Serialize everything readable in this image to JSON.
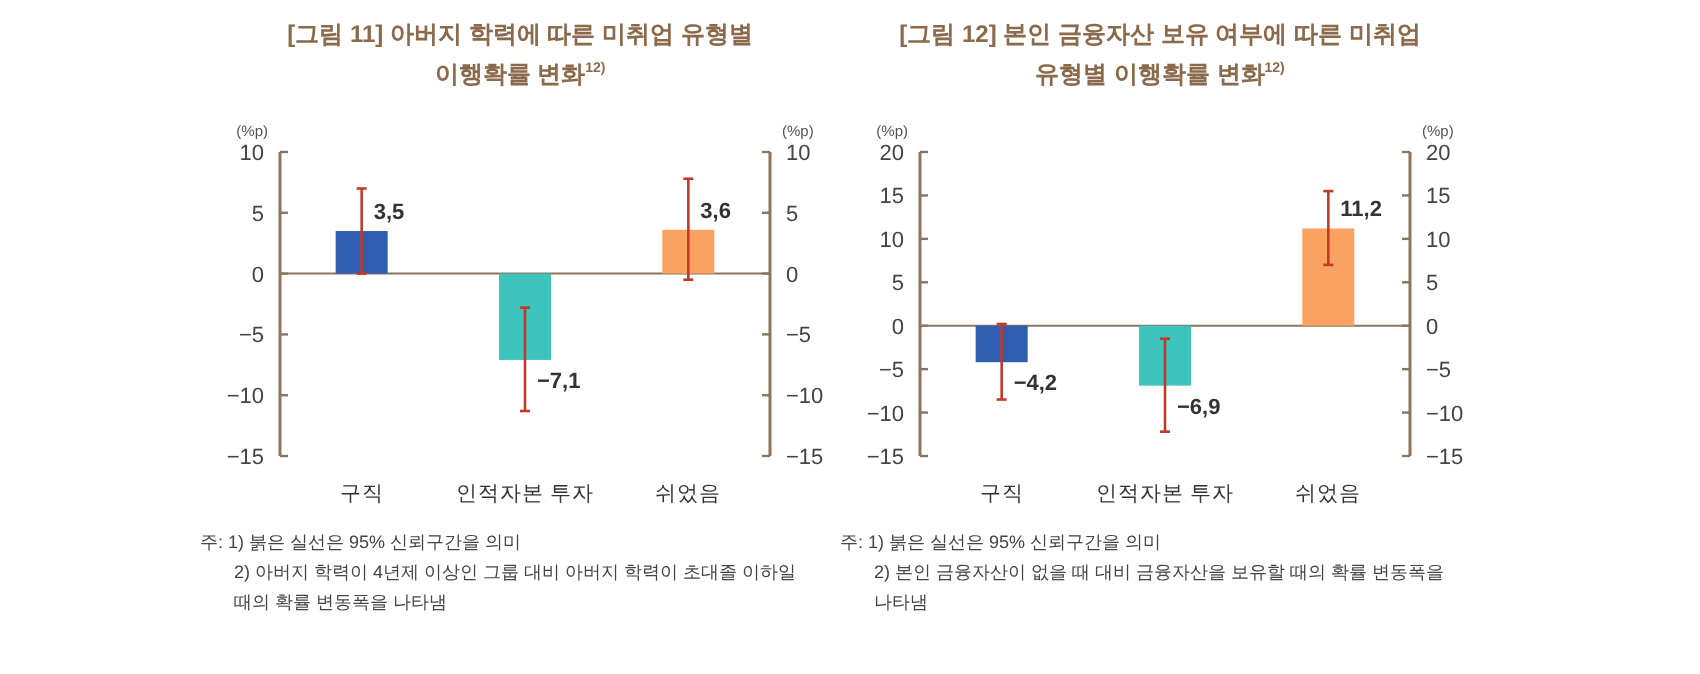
{
  "chart_data": [
    {
      "type": "bar",
      "title": "[그림 11] 아버지 학력에 따른 미취업 유형별 이행확률 변화$^{12)}$",
      "ylabel": "(%p)",
      "y2label": "(%p)",
      "categories": [
        "구직",
        "인적자본 투자",
        "쉬었음"
      ],
      "values": [
        3.5,
        -7.1,
        3.6
      ],
      "colors": [
        "#2f5db0",
        "#3ec3bd",
        "#f9a262"
      ],
      "errors": [
        [
          0,
          7
        ],
        [
          -11.3,
          -2.8
        ],
        [
          -0.5,
          7.8
        ]
      ],
      "value_labels": [
        "3,5",
        "−7,1",
        "3,6"
      ],
      "ylim": [
        -15,
        10
      ],
      "yticks": [
        -15,
        -10,
        -5,
        0,
        5,
        10
      ],
      "y2lim": [
        -15,
        10
      ],
      "y2ticks": [
        -15,
        -10,
        -5,
        0,
        5,
        10
      ],
      "grid": false,
      "ref_lines": [
        {
          "axis": "y",
          "value": 0,
          "color": "#8b7560"
        }
      ],
      "annotations": [
        "주: 1) 붉은 실선은 95% 신뢰구간을 의미",
        "2) 아버지 학력이 4년제 이상인 그룹 대비 아버지 학력이 초대졸 이하일 때의 확률 변동폭을 나타냄"
      ]
    },
    {
      "type": "bar",
      "title": "[그림 12] 본인 금융자산 보유 여부에 따른 미취업 유형별 이행확률 변화$^{12)}$",
      "ylabel": "(%p)",
      "y2label": "(%p)",
      "categories": [
        "구직",
        "인적자본 투자",
        "쉬었음"
      ],
      "values": [
        -4.2,
        -6.9,
        11.2
      ],
      "colors": [
        "#2f5db0",
        "#3ec3bd",
        "#f9a262"
      ],
      "errors": [
        [
          -8.5,
          0.2
        ],
        [
          -12.2,
          -1.5
        ],
        [
          7,
          15.5
        ]
      ],
      "value_labels": [
        "−4,2",
        "−6,9",
        "11,2"
      ],
      "ylim": [
        -15,
        20
      ],
      "yticks": [
        -15,
        -10,
        -5,
        0,
        5,
        10,
        15,
        20
      ],
      "y2lim": [
        -15,
        20
      ],
      "y2ticks": [
        -15,
        -10,
        -5,
        0,
        5,
        10,
        15,
        20
      ],
      "grid": false,
      "ref_lines": [
        {
          "axis": "y",
          "value": 0,
          "color": "#8b7560"
        }
      ],
      "annotations": [
        "주: 1) 붉은 실선은 95% 신뢰구간을 의미",
        "2) 본인 금융자산이 없을 때 대비 금융자산을 보유할 때의 확률 변동폭을 나타냄"
      ]
    }
  ]
}
